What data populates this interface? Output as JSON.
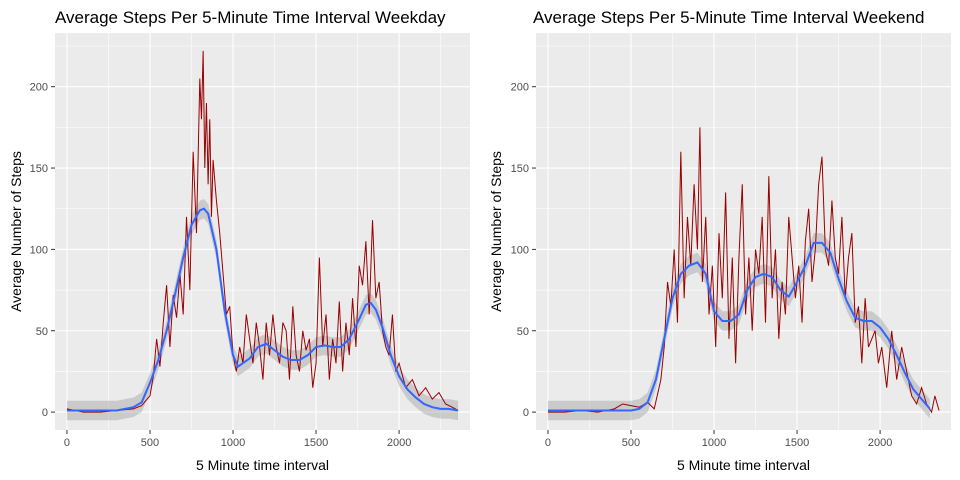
{
  "chart_data": [
    {
      "type": "line",
      "title": "Average Steps Per 5-Minute Time Interval Weekday",
      "xlabel": "5 Minute time interval",
      "ylabel": "Average Number of Steps",
      "xlim": [
        -72,
        2427
      ],
      "ylim": [
        -11,
        233
      ],
      "x_ticks": [
        0,
        500,
        1000,
        1500,
        2000
      ],
      "y_ticks": [
        0,
        50,
        100,
        150,
        200
      ],
      "grid": true,
      "series": [
        {
          "color": "#990000",
          "x": [
            0,
            100,
            200,
            300,
            400,
            450,
            500,
            520,
            540,
            560,
            580,
            600,
            620,
            640,
            660,
            680,
            700,
            720,
            740,
            760,
            780,
            800,
            810,
            820,
            830,
            840,
            850,
            860,
            870,
            880,
            900,
            920,
            940,
            960,
            980,
            1000,
            1020,
            1040,
            1060,
            1080,
            1100,
            1120,
            1140,
            1160,
            1180,
            1200,
            1220,
            1240,
            1260,
            1280,
            1300,
            1320,
            1340,
            1360,
            1380,
            1400,
            1420,
            1440,
            1460,
            1480,
            1500,
            1520,
            1540,
            1560,
            1580,
            1600,
            1620,
            1640,
            1660,
            1680,
            1700,
            1720,
            1740,
            1760,
            1780,
            1800,
            1820,
            1840,
            1860,
            1880,
            1900,
            1920,
            1940,
            1960,
            1980,
            2000,
            2040,
            2080,
            2120,
            2160,
            2200,
            2240,
            2280,
            2320,
            2355
          ],
          "y": [
            2,
            0,
            0,
            1,
            2,
            4,
            10,
            22,
            45,
            28,
            55,
            78,
            40,
            72,
            58,
            85,
            60,
            120,
            75,
            160,
            110,
            205,
            180,
            222,
            150,
            190,
            140,
            180,
            120,
            155,
            130,
            110,
            85,
            60,
            65,
            35,
            25,
            40,
            30,
            60,
            45,
            30,
            55,
            40,
            20,
            55,
            35,
            60,
            40,
            30,
            55,
            50,
            20,
            65,
            35,
            25,
            50,
            38,
            45,
            15,
            30,
            95,
            40,
            60,
            20,
            45,
            30,
            68,
            25,
            55,
            35,
            70,
            40,
            90,
            78,
            105,
            60,
            118,
            70,
            80,
            50,
            40,
            35,
            60,
            25,
            30,
            15,
            20,
            10,
            15,
            8,
            12,
            5,
            3,
            1
          ]
        },
        {
          "color": "#3366ff",
          "x": [
            0,
            100,
            200,
            300,
            400,
            450,
            500,
            550,
            600,
            650,
            700,
            750,
            800,
            825,
            850,
            900,
            950,
            1000,
            1030,
            1100,
            1150,
            1200,
            1250,
            1300,
            1350,
            1400,
            1450,
            1500,
            1550,
            1600,
            1650,
            1700,
            1750,
            1800,
            1830,
            1860,
            1900,
            1950,
            2000,
            2050,
            2100,
            2150,
            2200,
            2250,
            2300,
            2355
          ],
          "y": [
            1,
            1,
            1,
            1,
            3,
            6,
            18,
            32,
            50,
            72,
            95,
            115,
            124,
            125,
            122,
            100,
            62,
            35,
            28,
            33,
            40,
            42,
            38,
            34,
            32,
            32,
            35,
            40,
            41,
            40,
            40,
            45,
            55,
            66,
            67,
            63,
            52,
            35,
            22,
            14,
            9,
            5,
            3,
            2,
            2,
            1
          ]
        }
      ]
    },
    {
      "type": "line",
      "title": "Average Steps Per 5-Minute Time Interval Weekend",
      "xlabel": "5 Minute time interval",
      "ylabel": "Average Number of Steps",
      "xlim": [
        -72,
        2427
      ],
      "ylim": [
        -11,
        233
      ],
      "x_ticks": [
        0,
        500,
        1000,
        1500,
        2000
      ],
      "y_ticks": [
        0,
        50,
        100,
        150,
        200
      ],
      "grid": true,
      "series": [
        {
          "color": "#990000",
          "x": [
            0,
            100,
            200,
            300,
            400,
            450,
            500,
            550,
            600,
            640,
            680,
            700,
            720,
            740,
            760,
            780,
            800,
            820,
            840,
            860,
            880,
            900,
            915,
            930,
            950,
            970,
            990,
            1010,
            1030,
            1050,
            1070,
            1090,
            1110,
            1130,
            1150,
            1170,
            1190,
            1210,
            1230,
            1250,
            1270,
            1290,
            1310,
            1330,
            1350,
            1370,
            1390,
            1410,
            1430,
            1450,
            1470,
            1490,
            1510,
            1530,
            1550,
            1570,
            1590,
            1610,
            1630,
            1650,
            1670,
            1690,
            1710,
            1730,
            1750,
            1770,
            1790,
            1810,
            1830,
            1850,
            1870,
            1890,
            1910,
            1930,
            1950,
            1970,
            1990,
            2010,
            2040,
            2070,
            2100,
            2130,
            2160,
            2190,
            2220,
            2250,
            2280,
            2310,
            2330,
            2355
          ],
          "y": [
            0,
            0,
            1,
            0,
            2,
            5,
            4,
            3,
            6,
            2,
            20,
            40,
            80,
            65,
            100,
            55,
            160,
            70,
            120,
            90,
            140,
            100,
            175,
            80,
            120,
            60,
            90,
            40,
            110,
            70,
            135,
            45,
            95,
            30,
            95,
            140,
            60,
            95,
            50,
            100,
            85,
            120,
            55,
            145,
            70,
            100,
            45,
            80,
            60,
            120,
            95,
            70,
            90,
            55,
            105,
            125,
            80,
            100,
            140,
            157,
            100,
            90,
            130,
            95,
            85,
            120,
            70,
            95,
            110,
            55,
            65,
            30,
            70,
            40,
            45,
            50,
            30,
            40,
            15,
            50,
            20,
            40,
            25,
            10,
            5,
            15,
            5,
            0,
            10,
            1
          ]
        },
        {
          "color": "#3366ff",
          "x": [
            0,
            100,
            200,
            300,
            400,
            500,
            550,
            600,
            650,
            700,
            750,
            800,
            850,
            900,
            950,
            1000,
            1050,
            1100,
            1150,
            1200,
            1250,
            1300,
            1350,
            1400,
            1450,
            1500,
            1550,
            1600,
            1650,
            1700,
            1750,
            1800,
            1850,
            1900,
            1950,
            2000,
            2050,
            2100,
            2150,
            2200,
            2250,
            2300
          ],
          "y": [
            1,
            1,
            1,
            1,
            1,
            1,
            2,
            6,
            20,
            45,
            70,
            85,
            90,
            92,
            85,
            62,
            56,
            56,
            60,
            75,
            83,
            85,
            83,
            75,
            71,
            80,
            90,
            104,
            104,
            98,
            82,
            68,
            58,
            56,
            56,
            52,
            45,
            35,
            24,
            14,
            8,
            2
          ]
        }
      ]
    }
  ]
}
